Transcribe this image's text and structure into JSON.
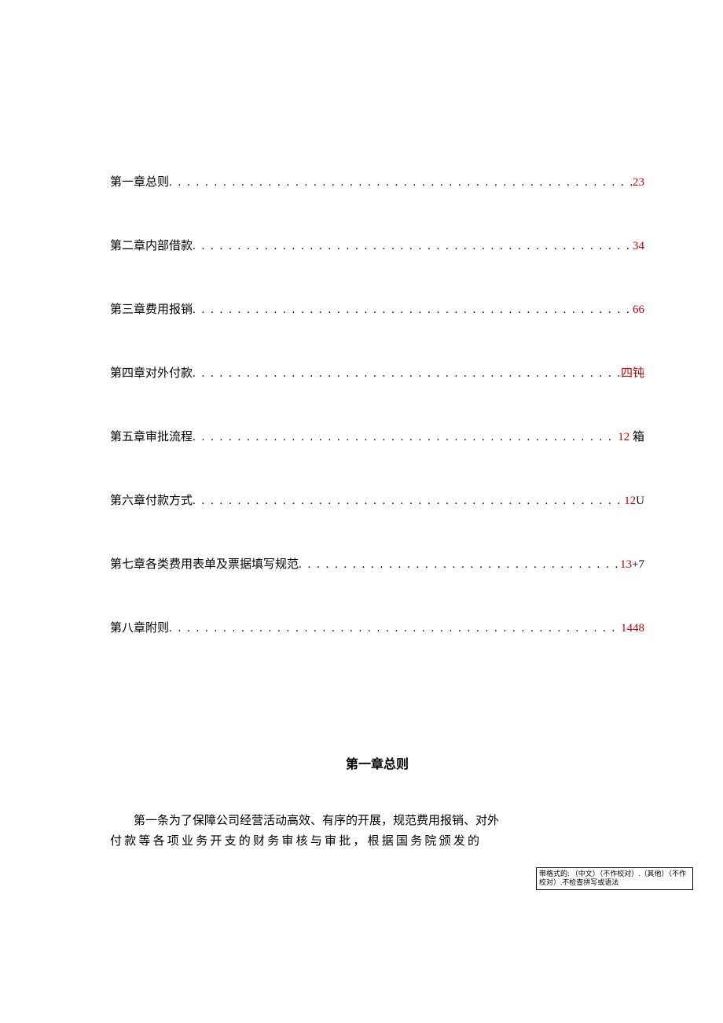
{
  "toc": [
    {
      "label": "第一章总则",
      "page": "23",
      "page_red": true
    },
    {
      "label": "第二章内部借款",
      "page": "34",
      "page_red": true
    },
    {
      "label": "第三章费用报销",
      "page": "66",
      "page_red": true
    },
    {
      "label": "第四章对外付款",
      "page": "四钝",
      "page_red": true
    },
    {
      "label": "第五章审批流程",
      "page_num": "12",
      "page_suffix": " 箱",
      "mixed": true
    },
    {
      "label": "第六章付款方式",
      "page_num": "12",
      "page_suffix": "U",
      "mixed": true
    },
    {
      "label": "第七章各类费用表单及票据填写规范",
      "page_num": "13",
      "page_suffix": "+7",
      "mixed": true
    },
    {
      "label": "第八章附则",
      "page": "1448",
      "page_red": true
    }
  ],
  "section_title": "第一章总则",
  "body": {
    "line1": "第一条为了保障公司经营活动高效、有序的开展，规范费用报销、对外",
    "line2": "付款等各项业务开支的财务审核与审批，根据国务院颁发的"
  },
  "comment": "带格式的: （中文）（不作校对）.（其他）（不作校对）.不检查拼写或语法",
  "colors": {
    "accent_red": "#c00000",
    "text": "#000000",
    "bg": "#ffffff"
  }
}
